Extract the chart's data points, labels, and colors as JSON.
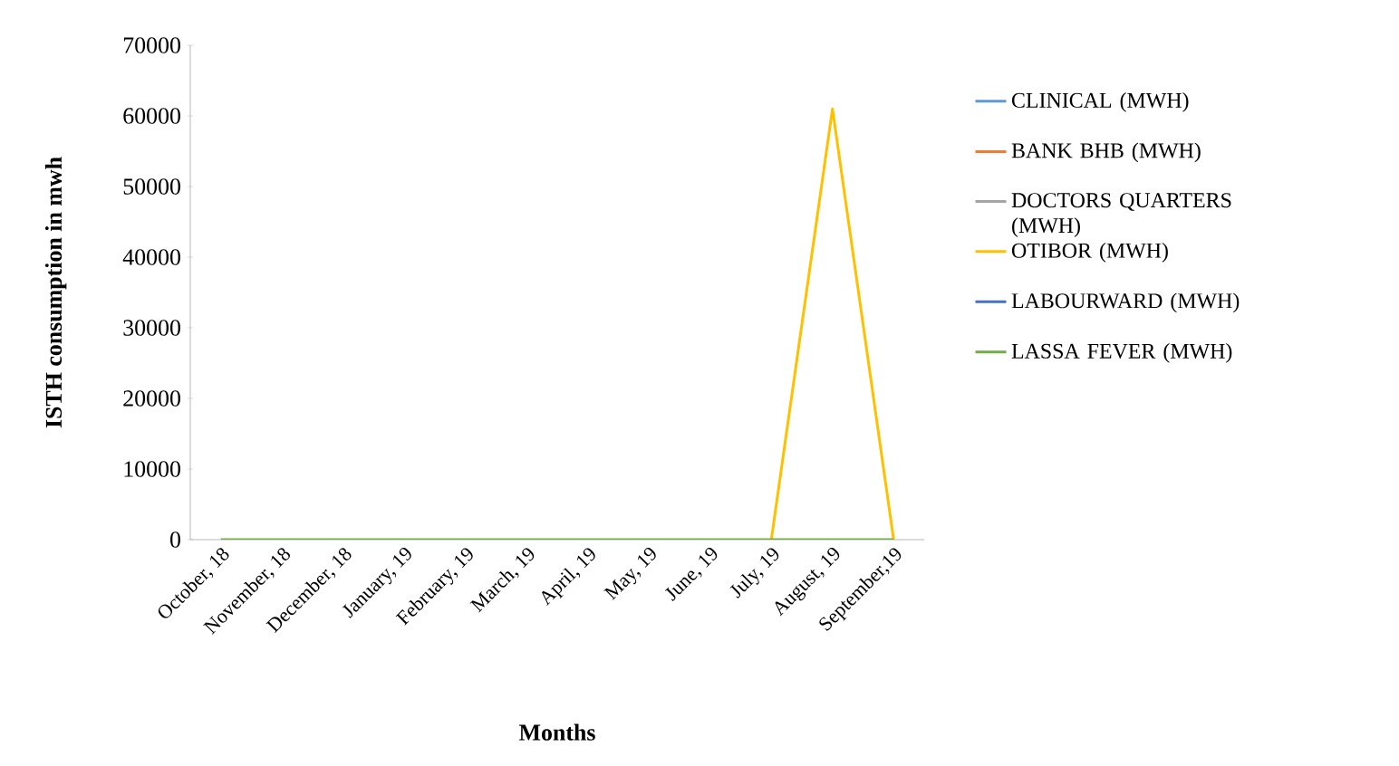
{
  "chart_data": {
    "type": "line",
    "xlabel": "Months",
    "ylabel": "ISTH consumption in mwh",
    "categories": [
      "October, 18",
      "November, 18",
      "December, 18",
      "January, 19",
      "February, 19",
      "March, 19",
      "April, 19",
      "May, 19",
      "June, 19",
      "July, 19",
      "August, 19",
      "September,19"
    ],
    "series": [
      {
        "name": "CLINICAL (MWH)",
        "color": "#5b9bd5",
        "values": [
          null,
          null,
          null,
          null,
          null,
          null,
          null,
          null,
          null,
          null,
          null,
          null
        ]
      },
      {
        "name": "BANK BHB (MWH)",
        "color": "#ed7d31",
        "values": [
          null,
          null,
          null,
          null,
          null,
          null,
          null,
          null,
          null,
          null,
          null,
          null
        ]
      },
      {
        "name": "DOCTORS QUARTERS (MWH)",
        "color": "#a5a5a5",
        "values": [
          null,
          null,
          null,
          null,
          null,
          null,
          null,
          null,
          null,
          null,
          null,
          null
        ]
      },
      {
        "name": "OTIBOR (MWH)",
        "color": "#ffc000",
        "values": [
          null,
          null,
          null,
          null,
          null,
          null,
          null,
          null,
          null,
          0,
          61000,
          0
        ]
      },
      {
        "name": "LABOURWARD (MWH)",
        "color": "#4472c4",
        "values": [
          null,
          null,
          null,
          null,
          null,
          null,
          null,
          null,
          null,
          null,
          null,
          null
        ]
      },
      {
        "name": "LASSA FEVER (MWH)",
        "color": "#70ad47",
        "values": [
          0,
          0,
          0,
          0,
          0,
          0,
          0,
          0,
          0,
          0,
          0,
          0
        ]
      }
    ],
    "ylim": [
      0,
      70000
    ],
    "yticks": [
      0,
      10000,
      20000,
      30000,
      40000,
      50000,
      60000,
      70000
    ],
    "legend": "right",
    "grid": false,
    "marker": "none",
    "line_style": "solid"
  }
}
